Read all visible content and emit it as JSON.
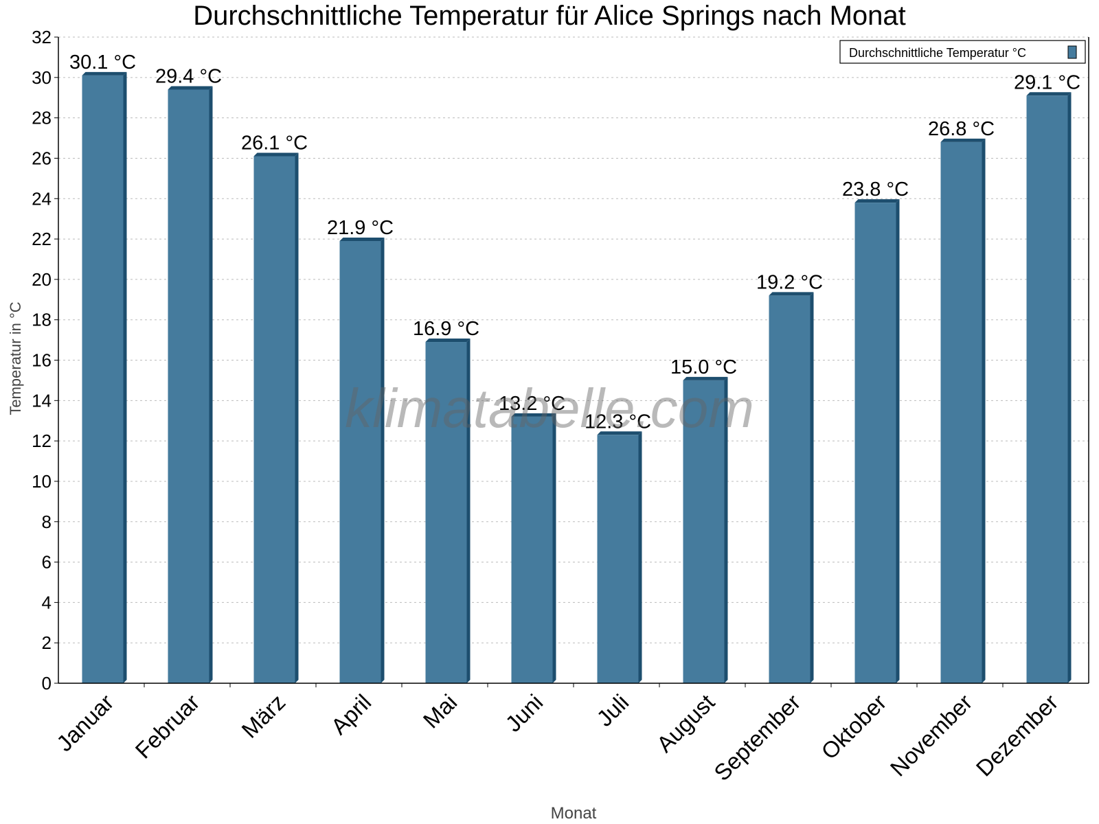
{
  "chart_data": {
    "type": "bar",
    "title": "Durchschnittliche Temperatur für Alice Springs nach Monat",
    "xlabel": "Monat",
    "ylabel": "Temperatur in °C",
    "categories": [
      "Januar",
      "Februar",
      "März",
      "April",
      "Mai",
      "Juni",
      "Juli",
      "August",
      "September",
      "Oktober",
      "November",
      "Dezember"
    ],
    "series": [
      {
        "name": "Durchschnittliche Temperatur °C",
        "values": [
          30.1,
          29.4,
          26.1,
          21.9,
          16.9,
          13.2,
          12.3,
          15.0,
          19.2,
          23.8,
          26.8,
          29.1
        ]
      }
    ],
    "data_labels": [
      "30.1 °C",
      "29.4 °C",
      "26.1 °C",
      "21.9 °C",
      "16.9 °C",
      "13.2 °C",
      "12.3 °C",
      "15.0 °C",
      "19.2 °C",
      "23.8 °C",
      "26.8 °C",
      "29.1 °C"
    ],
    "ylim": [
      0,
      32
    ],
    "yticks": [
      0,
      2,
      4,
      6,
      8,
      10,
      12,
      14,
      16,
      18,
      20,
      22,
      24,
      26,
      28,
      30,
      32
    ],
    "grid": true,
    "legend_position": "top-right",
    "watermark": "klimatabelle.com",
    "colors": {
      "bar": "#457b9d",
      "bar_side": "#1d4e6e"
    }
  }
}
